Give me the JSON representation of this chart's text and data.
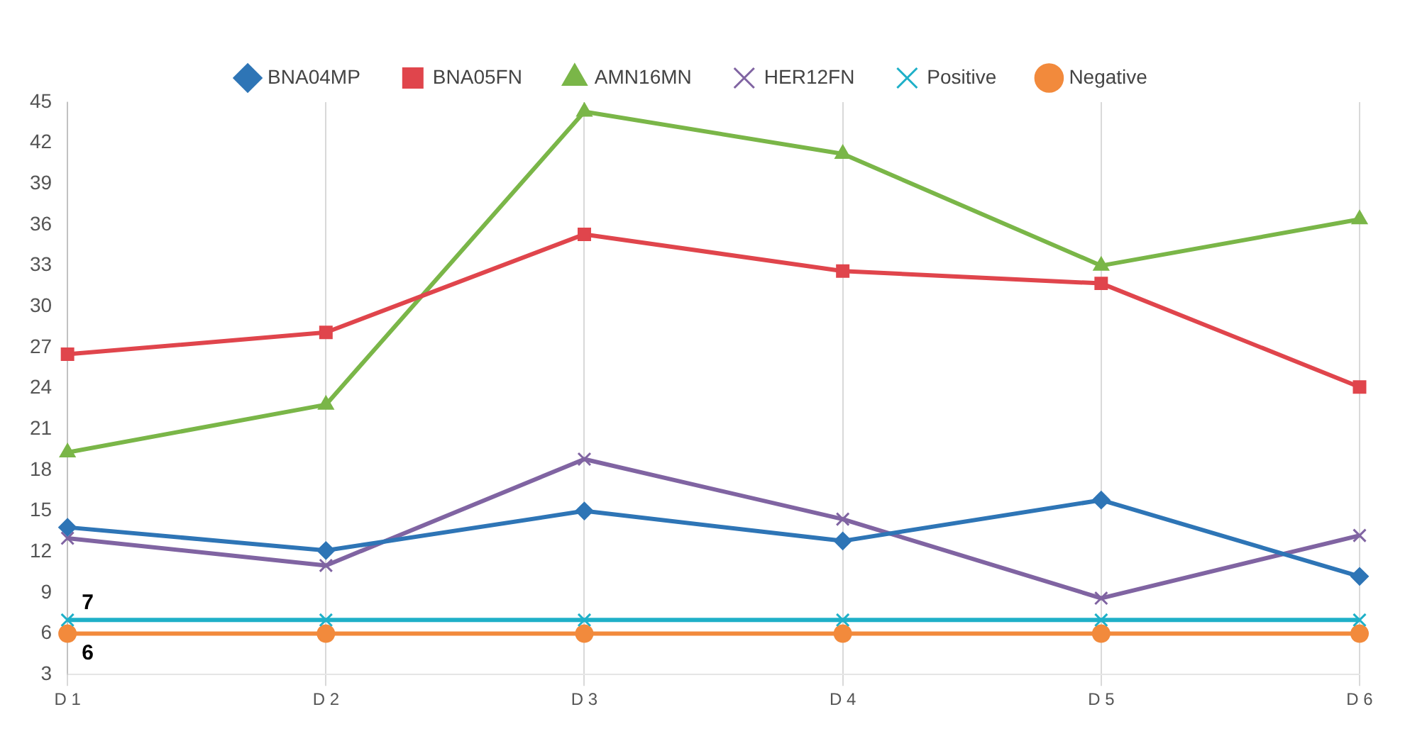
{
  "chart_data": {
    "type": "line",
    "categories": [
      "D 1",
      "D 2",
      "D 3",
      "D 4",
      "D 5",
      "D 6"
    ],
    "series": [
      {
        "name": "BNA04MP",
        "color": "#2e75b6",
        "marker": "diamond",
        "values": [
          13.8,
          12.1,
          15.0,
          12.8,
          15.8,
          10.2
        ]
      },
      {
        "name": "BNA05FN",
        "color": "#e0454c",
        "marker": "square",
        "values": [
          26.5,
          28.1,
          35.3,
          32.6,
          31.7,
          24.1
        ]
      },
      {
        "name": "AMN16MN",
        "color": "#7ab648",
        "marker": "triangle",
        "values": [
          19.3,
          22.8,
          44.3,
          41.2,
          33.0,
          36.4
        ]
      },
      {
        "name": "HER12FN",
        "color": "#8064a2",
        "marker": "cross",
        "values": [
          13.0,
          11.0,
          18.8,
          14.4,
          8.6,
          13.2
        ]
      },
      {
        "name": "Positive",
        "color": "#1fb0c8",
        "marker": "cross",
        "values": [
          7,
          7,
          7,
          7,
          7,
          7
        ]
      },
      {
        "name": "Negative",
        "color": "#f28a3c",
        "marker": "circle",
        "values": [
          6,
          6,
          6,
          6,
          6,
          6
        ]
      }
    ],
    "annotations": [
      {
        "text": "7",
        "x": "D 1",
        "y": 7
      },
      {
        "text": "6",
        "x": "D 1",
        "y": 6
      }
    ],
    "ylim": [
      3,
      45
    ],
    "yticks": [
      3,
      6,
      9,
      12,
      15,
      18,
      21,
      24,
      27,
      30,
      33,
      36,
      39,
      42,
      45
    ],
    "grid": "x",
    "legend": "top"
  }
}
